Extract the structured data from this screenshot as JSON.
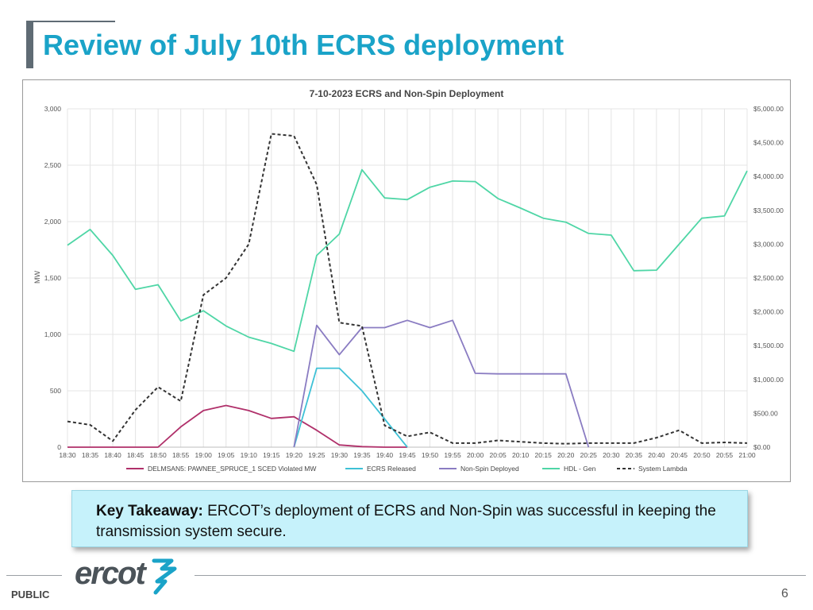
{
  "slide": {
    "title": "Review of July 10th ECRS deployment",
    "takeaway_label": "Key Takeaway:",
    "takeaway_text": " ERCOT’s deployment of ECRS and Non-Spin was successful in keeping the transmission system secure.",
    "footer_public": "PUBLIC",
    "page_number": "6",
    "logo_text": "ercot"
  },
  "chart_data": {
    "type": "line",
    "title": "7-10-2023 ECRS and Non-Spin Deployment",
    "ylabel": "MW",
    "ylim": [
      0,
      3000
    ],
    "y_ticks": [
      0,
      500,
      1000,
      1500,
      2000,
      2500,
      3000
    ],
    "y_tick_labels": [
      "0",
      "500",
      "1,000",
      "1,500",
      "2,000",
      "2,500",
      "3,000"
    ],
    "y2lim": [
      0,
      5000
    ],
    "y2_ticks": [
      0,
      500,
      1000,
      1500,
      2000,
      2500,
      3000,
      3500,
      4000,
      4500,
      5000
    ],
    "y2_tick_labels": [
      "$0.00",
      "$500.00",
      "$1,000.00",
      "$1,500.00",
      "$2,000.00",
      "$2,500.00",
      "$3,000.00",
      "$3,500.00",
      "$4,000.00",
      "$4,500.00",
      "$5,000.00"
    ],
    "x": [
      "18:30",
      "18:35",
      "18:40",
      "18:45",
      "18:50",
      "18:55",
      "19:00",
      "19:05",
      "19:10",
      "19:15",
      "19:20",
      "19:25",
      "19:30",
      "19:35",
      "19:40",
      "19:45",
      "19:50",
      "19:55",
      "20:00",
      "20:05",
      "20:10",
      "20:15",
      "20:20",
      "20:25",
      "20:30",
      "20:35",
      "20:40",
      "20:45",
      "20:50",
      "20:55",
      "21:00"
    ],
    "grid": true,
    "legend_position": "bottom",
    "series": [
      {
        "name": "DELMSAN5: PAWNEE_SPRUCE_1 SCED Violated MW",
        "color": "#b0306a",
        "axis": "left",
        "style": "solid",
        "values": [
          0,
          0,
          0,
          0,
          0,
          180,
          325,
          370,
          325,
          255,
          270,
          150,
          20,
          5,
          0,
          0,
          null,
          null,
          null,
          null,
          null,
          null,
          null,
          null,
          null,
          null,
          null,
          null,
          null,
          null,
          null
        ]
      },
      {
        "name": "ECRS Released",
        "color": "#3ec1d6",
        "axis": "left",
        "style": "solid",
        "values": [
          null,
          null,
          null,
          null,
          null,
          null,
          null,
          null,
          null,
          null,
          0,
          700,
          700,
          500,
          250,
          0,
          null,
          null,
          null,
          null,
          null,
          null,
          null,
          null,
          null,
          null,
          null,
          null,
          null,
          null,
          null
        ]
      },
      {
        "name": "Non-Spin Deployed",
        "color": "#8a7cc2",
        "axis": "left",
        "style": "solid",
        "values": [
          null,
          null,
          null,
          null,
          null,
          null,
          null,
          null,
          null,
          null,
          0,
          1080,
          820,
          1060,
          1060,
          1125,
          1060,
          1125,
          655,
          650,
          650,
          650,
          650,
          0,
          null,
          null,
          null,
          null,
          null,
          null,
          null
        ]
      },
      {
        "name": "HDL - Gen",
        "color": "#4fd6a6",
        "axis": "left",
        "style": "solid",
        "values": [
          1790,
          1930,
          1700,
          1400,
          1440,
          1120,
          1210,
          1075,
          975,
          920,
          850,
          1700,
          1890,
          2460,
          2210,
          2195,
          2305,
          2360,
          2355,
          2205,
          2120,
          2030,
          1995,
          1895,
          1880,
          1565,
          1570,
          1800,
          2030,
          2050,
          2450
        ]
      },
      {
        "name": "System Lambda",
        "color": "#333333",
        "axis": "right",
        "style": "dashed",
        "values": [
          380,
          330,
          90,
          550,
          890,
          680,
          2250,
          2500,
          3000,
          4630,
          4600,
          3880,
          1840,
          1790,
          320,
          160,
          220,
          60,
          60,
          100,
          80,
          60,
          50,
          60,
          60,
          60,
          140,
          250,
          60,
          70,
          60
        ]
      }
    ]
  }
}
